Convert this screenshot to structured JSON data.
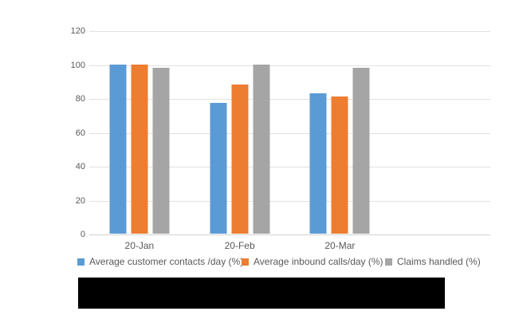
{
  "chart_data": {
    "type": "bar",
    "title": "",
    "categories": [
      "20-Jan",
      "20-Feb",
      "20-Mar"
    ],
    "series": [
      {
        "name": "Average customer contacts /day (%)",
        "color": "#5B9BD5",
        "values": [
          100,
          77,
          83
        ]
      },
      {
        "name": "Average inbound calls/day (%)",
        "color": "#ED7D31",
        "values": [
          100,
          88,
          81
        ]
      },
      {
        "name": "Claims handled (%)",
        "color": "#A5A5A5",
        "values": [
          98,
          100,
          98
        ]
      }
    ],
    "xlabel": "",
    "ylabel": "",
    "ylim": [
      0,
      120
    ],
    "yticks": [
      0,
      20,
      40,
      60,
      80,
      100,
      120
    ],
    "grid": true,
    "legend_position": "bottom",
    "category_slots": 4,
    "axis_text_color": "#595959",
    "gridline_color": "#e2e2e2"
  },
  "footer": {
    "redaction_color": "#000000"
  }
}
